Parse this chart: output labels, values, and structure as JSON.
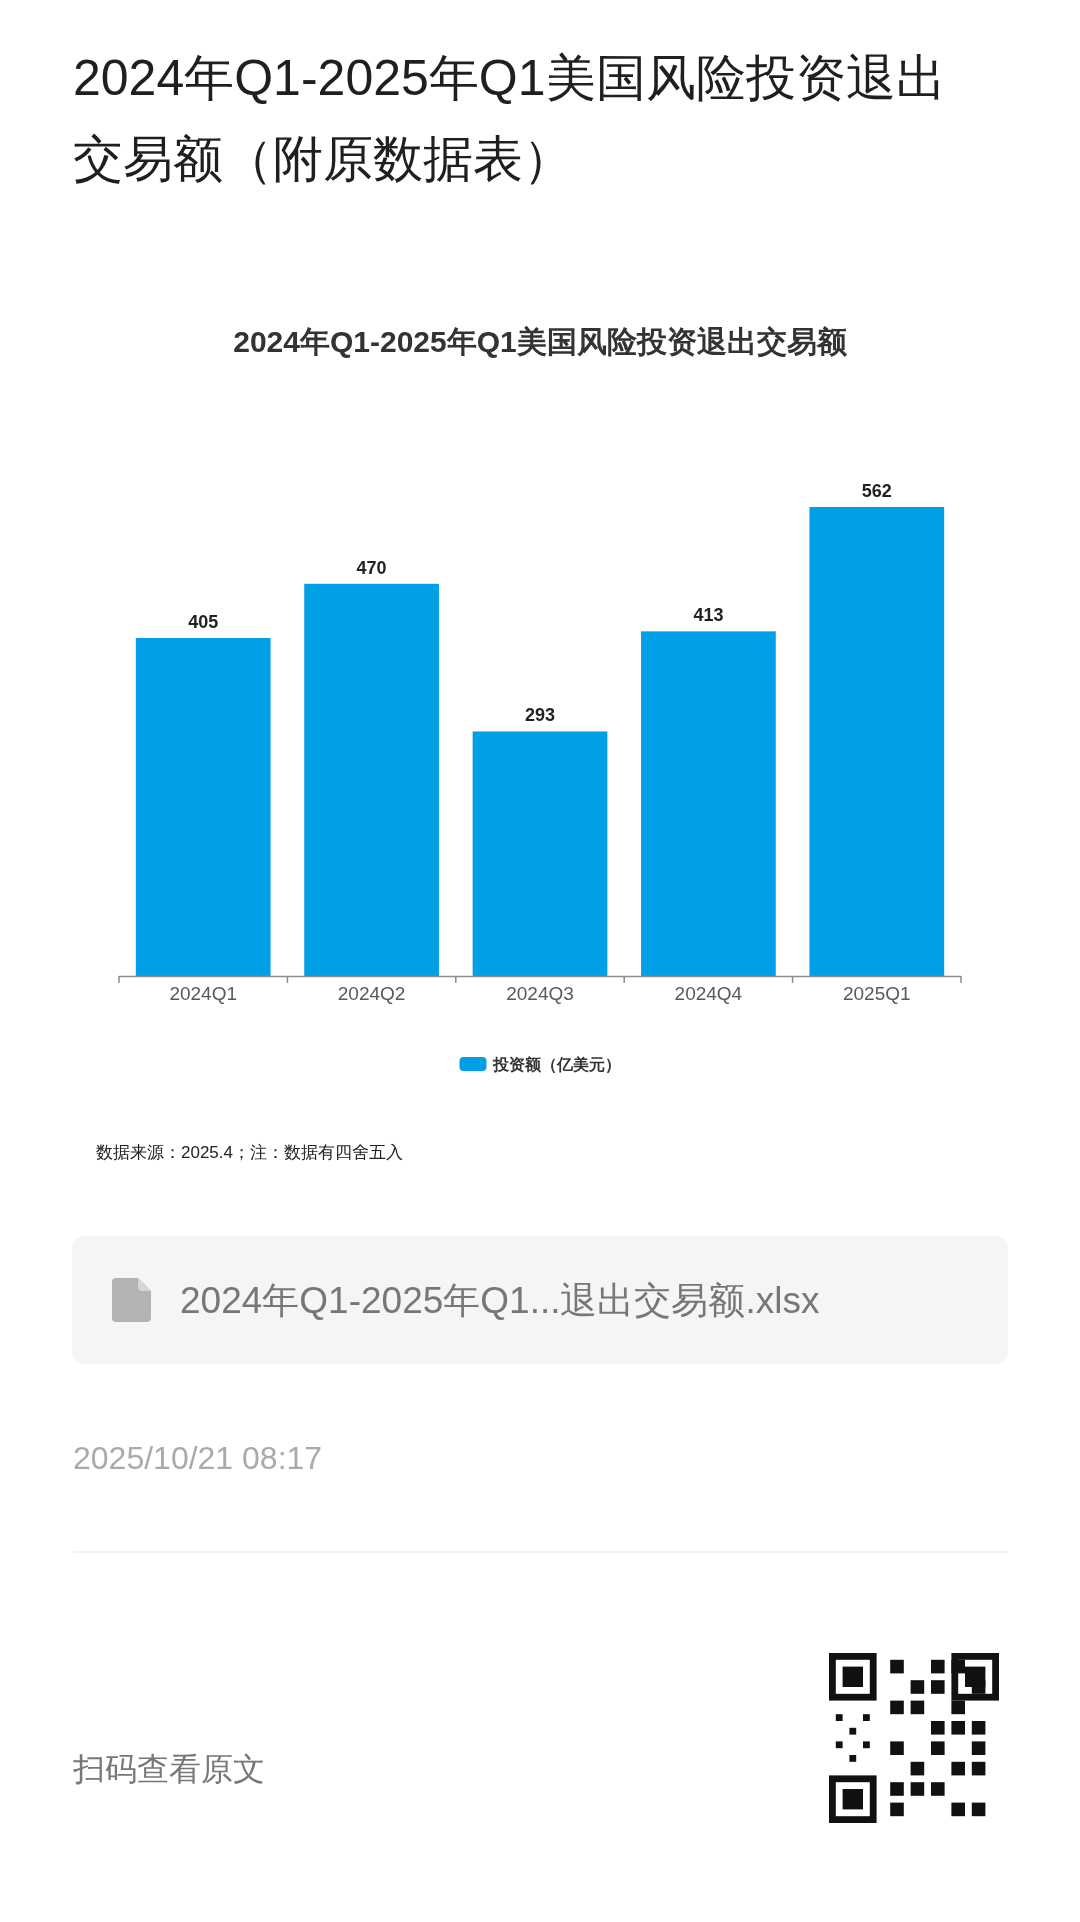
{
  "chart_data": {
    "type": "bar",
    "title": "2024年Q1-2025年Q1美国风险投资退出交易额（附原数据表）",
    "subtitle": "2024年Q1-2025年Q1美国风险投资退出交易额",
    "categories": [
      "2024Q1",
      "2024Q2",
      "2024Q3",
      "2024Q4",
      "2025Q1"
    ],
    "series": [
      {
        "name": "投资额（亿美元）",
        "color": "#00a0e6",
        "values": [
          405,
          470,
          293,
          413,
          562
        ]
      }
    ],
    "data_labels": true,
    "legend": "bottom",
    "annotations": [
      "数据来源：2025.4；注：数据有四舍五入",
      "2024年Q1-2025年Q1...退出交易额.xlsx",
      "2025/10/21 08:17",
      "扫码查看原文"
    ]
  }
}
